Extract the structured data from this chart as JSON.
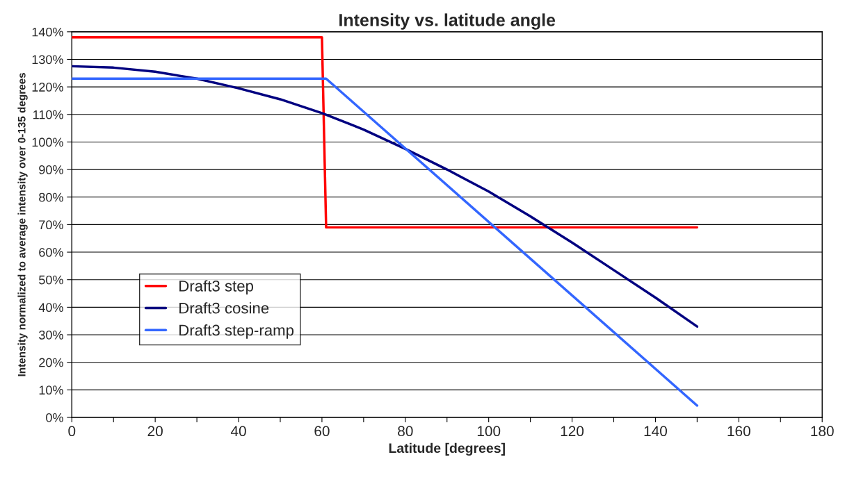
{
  "chart_data": {
    "type": "line",
    "title": "Intensity vs. latitude angle",
    "xlabel": "Latitude [degrees]",
    "ylabel": "Intensity normalized to average intensity over 0-135 degrees",
    "series": [
      {
        "name": "Draft3 step",
        "color": "#ff0000",
        "x": [
          0,
          60,
          61,
          150
        ],
        "values": [
          138,
          138,
          69,
          69
        ]
      },
      {
        "name": "Draft3 cosine",
        "color": "#000080",
        "x": [
          0,
          10,
          20,
          30,
          40,
          50,
          60,
          70,
          80,
          90,
          100,
          110,
          120,
          130,
          140,
          150
        ],
        "values": [
          127.5,
          127,
          125.5,
          123,
          119.5,
          115.5,
          110.5,
          104.5,
          97.5,
          90,
          82,
          73,
          63.5,
          53.5,
          43.5,
          33
        ]
      },
      {
        "name": "Draft3 step-ramp",
        "color": "#3366ff",
        "x": [
          0,
          61,
          150
        ],
        "values": [
          123,
          123,
          4.3
        ]
      }
    ],
    "xlim": [
      0,
      180
    ],
    "xticks": [
      0,
      {
        "value": 10,
        "label": null
      },
      20,
      {
        "value": 30,
        "label": null
      },
      40,
      {
        "value": 50,
        "label": null
      },
      60,
      {
        "value": 70,
        "label": null
      },
      80,
      {
        "value": 90,
        "label": null
      },
      100,
      {
        "value": 110,
        "label": null
      },
      120,
      {
        "value": 130,
        "label": null
      },
      140,
      {
        "value": 150,
        "label": null
      },
      160,
      {
        "value": 170,
        "label": null
      },
      180
    ],
    "ylim": [
      0,
      140
    ],
    "yticks": [
      {
        "value": 0,
        "label": "0%"
      },
      {
        "value": 10,
        "label": "10%"
      },
      {
        "value": 20,
        "label": "20%"
      },
      {
        "value": 30,
        "label": "30%"
      },
      {
        "value": 40,
        "label": "40%"
      },
      {
        "value": 50,
        "label": "50%"
      },
      {
        "value": 60,
        "label": "60%"
      },
      {
        "value": 70,
        "label": "70%"
      },
      {
        "value": 80,
        "label": "80%"
      },
      {
        "value": 90,
        "label": "90%"
      },
      {
        "value": 100,
        "label": "100%"
      },
      {
        "value": 110,
        "label": "110%"
      },
      {
        "value": 120,
        "label": "120%"
      },
      {
        "value": 130,
        "label": "130%"
      },
      {
        "value": 140,
        "label": "140%"
      }
    ],
    "grid": "y",
    "legend": "left",
    "marker": "none",
    "line_style": "solid"
  }
}
